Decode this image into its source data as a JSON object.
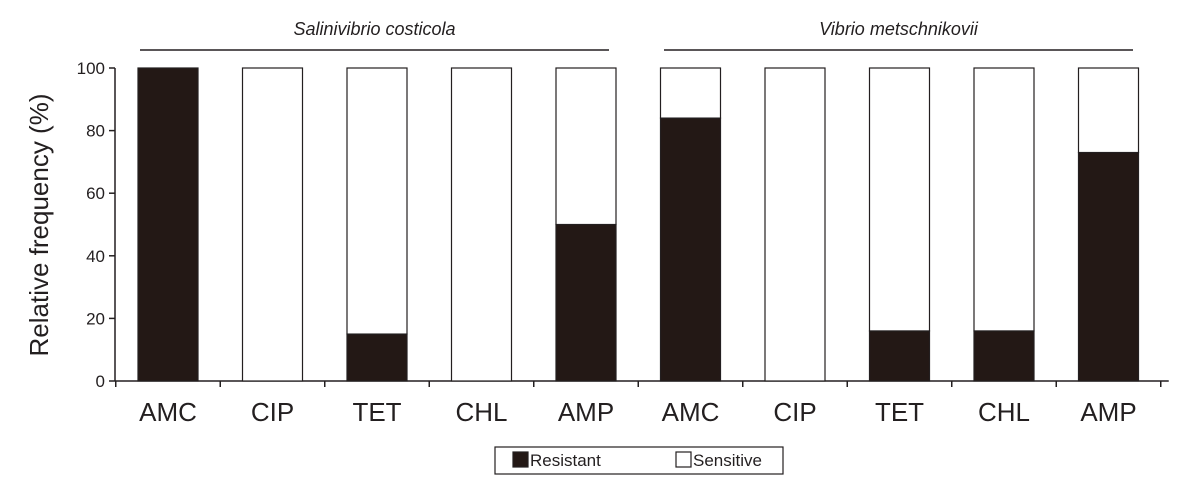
{
  "chart_data": {
    "type": "bar",
    "stacked": true,
    "ylabel": "Relative frequency (%)",
    "xlabel": "",
    "ylim": [
      0,
      100
    ],
    "yticks": [
      0,
      20,
      40,
      60,
      80,
      100
    ],
    "groups": [
      {
        "label": "Salinivibrio costicola",
        "categories": [
          "AMC",
          "CIP",
          "TET",
          "CHL",
          "AMP"
        ]
      },
      {
        "label": "Vibrio metschnikovii",
        "categories": [
          "AMC",
          "CIP",
          "TET",
          "CHL",
          "AMP"
        ]
      }
    ],
    "categories": [
      "AMC",
      "CIP",
      "TET",
      "CHL",
      "AMP",
      "AMC",
      "CIP",
      "TET",
      "CHL",
      "AMP"
    ],
    "series": [
      {
        "name": "Resistant",
        "color": "#231815",
        "values": [
          100,
          0,
          15,
          0,
          50,
          84,
          0,
          16,
          16,
          73
        ]
      },
      {
        "name": "Sensitive",
        "color": "#ffffff",
        "values": [
          0,
          100,
          85,
          100,
          50,
          16,
          100,
          84,
          84,
          27
        ]
      }
    ],
    "legend": {
      "position": "bottom-center",
      "entries": [
        "Resistant",
        "Sensitive"
      ]
    }
  }
}
